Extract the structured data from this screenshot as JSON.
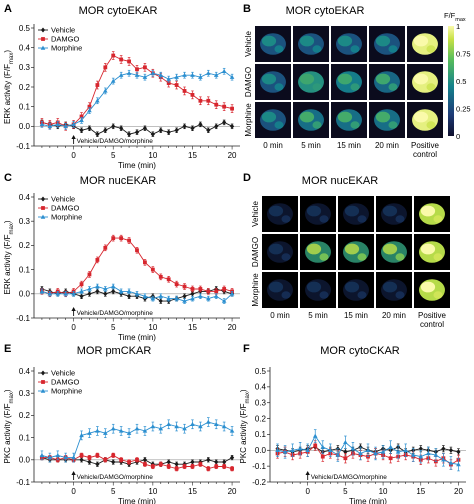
{
  "figure": {
    "panels": [
      {
        "letter": "A",
        "title": "MOR cytoEKAR",
        "ylabel": "ERK activity (F/F",
        "ylabel_sub": "max",
        "ylabel_close": ")",
        "xlabel": "Time (min)",
        "annotation": "Vehicle/DAMGO/morphine"
      },
      {
        "letter": "B",
        "title": "MOR cytoEKAR"
      },
      {
        "letter": "C",
        "title": "MOR nucEKAR",
        "ylabel": "ERK activity (F/F",
        "ylabel_sub": "max",
        "ylabel_close": ")",
        "xlabel": "Time (min)",
        "annotation": "Vehicle/DAMGO/morphine"
      },
      {
        "letter": "D",
        "title": "MOR nucEKAR"
      },
      {
        "letter": "E",
        "title": "MOR pmCKAR",
        "ylabel": "PKC activity (F/F",
        "ylabel_sub": "max",
        "ylabel_close": ")",
        "xlabel": "Time (min)",
        "annotation": "Vehicle/DAMGO/morphine"
      },
      {
        "letter": "F",
        "title": "MOR cytoCKAR",
        "ylabel": "PKC activity (F/F",
        "ylabel_sub": "max",
        "ylabel_close": ")",
        "xlabel": "Time (min)",
        "annotation": "Vehicle/DAMGO/morphine"
      }
    ],
    "image_grid": {
      "row_labels": [
        "Vehicle",
        "DAMGO",
        "Morphine"
      ],
      "col_labels": [
        "0 min",
        "5 min",
        "15 min",
        "20 min",
        "Positive control"
      ],
      "colorbar": {
        "title": "F/F",
        "title_sub": "max",
        "ticks": [
          "1",
          "0.75",
          "0.5",
          "0.25",
          "0"
        ]
      }
    },
    "series_style": [
      {
        "name": "Vehicle",
        "color": "#1a1a1a",
        "marker": "diamond"
      },
      {
        "name": "DAMGO",
        "color": "#d7262e",
        "marker": "square"
      },
      {
        "name": "Morphine",
        "color": "#2b8fd0",
        "marker": "triangle"
      }
    ]
  },
  "chart_data": [
    {
      "id": "A",
      "type": "line",
      "title": "MOR cytoEKAR",
      "xlabel": "Time (min)",
      "ylabel": "ERK activity (F/Fmax)",
      "xlim": [
        -5,
        21
      ],
      "ylim": [
        -0.1,
        0.5
      ],
      "xticks": [
        0,
        5,
        10,
        15,
        20
      ],
      "yticks": [
        -0.1,
        0.0,
        0.1,
        0.2,
        0.3,
        0.4,
        0.5
      ],
      "ytick_labels": [
        "-0.1",
        "0.0",
        "0.1",
        "0.2",
        "0.3",
        "0.4",
        "0.5"
      ],
      "x": [
        -4,
        -3,
        -2,
        -1,
        0,
        1,
        2,
        3,
        4,
        5,
        6,
        7,
        8,
        9,
        10,
        11,
        12,
        13,
        14,
        15,
        16,
        17,
        18,
        19,
        20
      ],
      "legend": "top-left",
      "series": [
        {
          "name": "Vehicle",
          "values": [
            0.02,
            0.01,
            0.0,
            0.01,
            0.0,
            -0.02,
            -0.01,
            -0.04,
            -0.02,
            0.0,
            -0.01,
            -0.04,
            -0.03,
            -0.01,
            -0.04,
            -0.02,
            -0.03,
            -0.02,
            0.0,
            -0.01,
            0.01,
            -0.02,
            0.0,
            0.02,
            0.0
          ],
          "err": 0.012
        },
        {
          "name": "DAMGO",
          "values": [
            0.02,
            0.01,
            0.02,
            0.0,
            0.01,
            0.05,
            0.1,
            0.21,
            0.3,
            0.36,
            0.34,
            0.33,
            0.29,
            0.3,
            0.27,
            0.25,
            0.22,
            0.21,
            0.18,
            0.16,
            0.13,
            0.13,
            0.11,
            0.1,
            0.09
          ],
          "err": 0.02
        },
        {
          "name": "Morphine",
          "values": [
            0.01,
            0.0,
            0.01,
            0.0,
            0.01,
            0.03,
            0.08,
            0.13,
            0.18,
            0.23,
            0.26,
            0.27,
            0.26,
            0.25,
            0.27,
            0.26,
            0.24,
            0.25,
            0.26,
            0.26,
            0.25,
            0.27,
            0.26,
            0.28,
            0.25
          ],
          "err": 0.015
        }
      ]
    },
    {
      "id": "C",
      "type": "line",
      "title": "MOR nucEKAR",
      "xlabel": "Time (min)",
      "ylabel": "ERK activity (F/Fmax)",
      "xlim": [
        -5,
        21
      ],
      "ylim": [
        -0.1,
        0.4
      ],
      "xticks": [
        0,
        5,
        10,
        15,
        20
      ],
      "yticks": [
        -0.1,
        0.0,
        0.1,
        0.2,
        0.3,
        0.4
      ],
      "ytick_labels": [
        "-0.1",
        "0.0",
        "0.1",
        "0.2",
        "0.3",
        "0.4"
      ],
      "x": [
        -4,
        -3,
        -2,
        -1,
        0,
        1,
        2,
        3,
        4,
        5,
        6,
        7,
        8,
        9,
        10,
        11,
        12,
        13,
        14,
        15,
        16,
        17,
        18,
        19,
        20
      ],
      "legend": "top-left",
      "series": [
        {
          "name": "Vehicle",
          "values": [
            0.02,
            0.01,
            0.0,
            0.01,
            0.0,
            -0.01,
            0.0,
            0.01,
            0.0,
            0.01,
            0.0,
            -0.01,
            -0.01,
            -0.02,
            -0.01,
            -0.03,
            -0.03,
            -0.02,
            -0.01,
            0.0,
            0.01,
            0.01,
            0.02,
            0.01,
            0.0
          ],
          "err": 0.01
        },
        {
          "name": "DAMGO",
          "values": [
            0.01,
            0.0,
            0.01,
            0.0,
            0.01,
            0.04,
            0.08,
            0.14,
            0.19,
            0.23,
            0.23,
            0.22,
            0.18,
            0.13,
            0.1,
            0.07,
            0.06,
            0.04,
            0.03,
            0.02,
            0.02,
            0.01,
            0.01,
            0.02,
            0.01
          ],
          "err": 0.012
        },
        {
          "name": "Morphine",
          "values": [
            0.01,
            0.0,
            0.0,
            0.0,
            0.0,
            0.01,
            0.02,
            0.03,
            0.02,
            0.03,
            0.01,
            0.01,
            0.0,
            -0.01,
            -0.02,
            -0.01,
            -0.02,
            -0.02,
            -0.03,
            -0.02,
            -0.01,
            -0.02,
            -0.01,
            -0.03,
            0.0
          ],
          "err": 0.01
        }
      ]
    },
    {
      "id": "E",
      "type": "line",
      "title": "MOR pmCKAR",
      "xlabel": "Time (min)",
      "ylabel": "PKC activity (F/Fmax)",
      "xlim": [
        -5,
        21
      ],
      "ylim": [
        -0.1,
        0.4
      ],
      "xticks": [
        0,
        5,
        10,
        15,
        20
      ],
      "yticks": [
        -0.1,
        0.0,
        0.1,
        0.2,
        0.3,
        0.4
      ],
      "ytick_labels": [
        "-0.1",
        "0.0",
        "0.1",
        "0.2",
        "0.3",
        "0.4"
      ],
      "x": [
        -4,
        -3,
        -2,
        -1,
        0,
        1,
        2,
        3,
        4,
        5,
        6,
        7,
        8,
        9,
        10,
        11,
        12,
        13,
        14,
        15,
        16,
        17,
        18,
        19,
        20
      ],
      "legend": "top-left",
      "series": [
        {
          "name": "Vehicle",
          "values": [
            0.01,
            0.0,
            0.0,
            0.0,
            0.0,
            0.0,
            -0.01,
            -0.02,
            0.0,
            -0.01,
            -0.01,
            -0.02,
            -0.01,
            0.0,
            -0.02,
            -0.02,
            -0.01,
            -0.02,
            -0.02,
            -0.01,
            -0.01,
            0.0,
            -0.01,
            -0.01,
            0.01
          ],
          "err": 0.01
        },
        {
          "name": "DAMGO",
          "values": [
            0.01,
            0.01,
            0.0,
            0.01,
            0.0,
            0.02,
            0.01,
            0.02,
            0.0,
            0.02,
            0.0,
            -0.01,
            0.0,
            -0.02,
            -0.03,
            -0.02,
            -0.03,
            -0.04,
            -0.03,
            -0.03,
            -0.02,
            -0.04,
            -0.03,
            -0.03,
            -0.04
          ],
          "err": 0.01
        },
        {
          "name": "Morphine",
          "values": [
            0.02,
            0.01,
            0.02,
            0.01,
            0.01,
            0.11,
            0.12,
            0.13,
            0.12,
            0.14,
            0.13,
            0.12,
            0.14,
            0.13,
            0.15,
            0.14,
            0.16,
            0.15,
            0.14,
            0.16,
            0.15,
            0.17,
            0.16,
            0.15,
            0.13
          ],
          "err": 0.02
        }
      ]
    },
    {
      "id": "F",
      "type": "line",
      "title": "MOR cytoCKAR",
      "xlabel": "Time (min)",
      "ylabel": "PKC activity (F/Fmax)",
      "xlim": [
        -5,
        21
      ],
      "ylim": [
        -0.2,
        0.5
      ],
      "xticks": [
        0,
        5,
        10,
        15,
        20
      ],
      "yticks": [
        -0.2,
        -0.1,
        0.0,
        0.1,
        0.2,
        0.3,
        0.4,
        0.5
      ],
      "ytick_labels": [
        "-0.2",
        "-0.1",
        "0.0",
        "0.1",
        "0.2",
        "0.3",
        "0.4",
        "0.5"
      ],
      "x": [
        -4,
        -3,
        -2,
        -1,
        0,
        1,
        2,
        3,
        4,
        5,
        6,
        7,
        8,
        9,
        10,
        11,
        12,
        13,
        14,
        15,
        16,
        17,
        18,
        19,
        20
      ],
      "legend": "none",
      "series": [
        {
          "name": "Vehicle",
          "values": [
            0.01,
            0.0,
            -0.01,
            0.0,
            0.01,
            0.02,
            -0.01,
            0.0,
            0.01,
            -0.01,
            0.0,
            0.02,
            0.0,
            -0.01,
            0.01,
            0.0,
            0.02,
            -0.01,
            0.0,
            0.01,
            0.0,
            -0.01,
            0.01,
            0.0,
            -0.01
          ],
          "err": 0.02
        },
        {
          "name": "DAMGO",
          "values": [
            -0.02,
            -0.01,
            -0.03,
            -0.02,
            -0.01,
            0.03,
            -0.04,
            -0.02,
            -0.03,
            -0.05,
            -0.02,
            -0.03,
            -0.04,
            -0.02,
            -0.03,
            -0.05,
            -0.04,
            -0.03,
            -0.04,
            -0.06,
            -0.05,
            -0.07,
            -0.05,
            -0.09,
            -0.06
          ],
          "err": 0.03
        },
        {
          "name": "Morphine",
          "values": [
            0.0,
            -0.01,
            0.0,
            0.01,
            0.0,
            0.09,
            0.02,
            0.0,
            -0.03,
            0.05,
            0.01,
            -0.02,
            0.0,
            -0.02,
            -0.01,
            0.02,
            -0.01,
            0.0,
            -0.03,
            -0.04,
            -0.02,
            -0.03,
            -0.06,
            -0.08,
            -0.09
          ],
          "err": 0.04
        }
      ]
    }
  ]
}
